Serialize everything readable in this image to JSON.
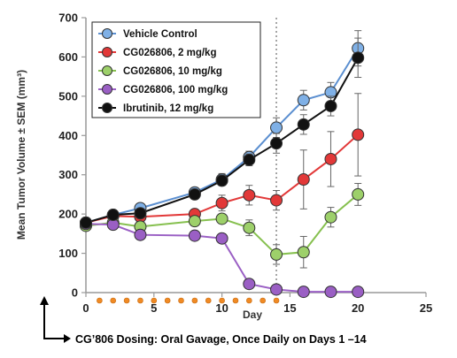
{
  "chart_data": {
    "type": "line",
    "title": "",
    "xlabel": "Day",
    "ylabel": "Mean Tumor Volume ± SEM (mm³)",
    "xlim": [
      0,
      25
    ],
    "ylim": [
      0,
      700
    ],
    "xticks": [
      0,
      5,
      10,
      15,
      20,
      25
    ],
    "yticks": [
      0,
      100,
      200,
      300,
      400,
      500,
      600,
      700
    ],
    "grid": false,
    "legend_position": "top-left",
    "reference_line": {
      "x": 14
    },
    "dosing_days": [
      1,
      2,
      3,
      4,
      5,
      6,
      7,
      8,
      9,
      10,
      11,
      12,
      13,
      14
    ],
    "dosing_note": "CG’806 Dosing: Oral Gavage, Once Daily on Days 1 –14",
    "series": [
      {
        "name": "Vehicle Control",
        "color": "#7fb0e6",
        "line_color": "#5b8fd0",
        "points": [
          [
            0,
            178
          ],
          [
            2,
            198
          ],
          [
            4,
            215
          ],
          [
            8,
            255
          ],
          [
            10,
            288
          ],
          [
            12,
            345
          ],
          [
            14,
            420
          ],
          [
            16,
            490
          ],
          [
            18,
            510
          ],
          [
            20,
            622
          ]
        ],
        "errors": [
          8,
          8,
          10,
          12,
          15,
          15,
          25,
          25,
          25,
          45
        ]
      },
      {
        "name": "CG026806, 2 mg/kg",
        "color": "#e23838",
        "line_color": "#e23838",
        "points": [
          [
            0,
            178
          ],
          [
            2,
            195
          ],
          [
            4,
            193
          ],
          [
            8,
            200
          ],
          [
            10,
            228
          ],
          [
            12,
            248
          ],
          [
            14,
            235
          ],
          [
            16,
            288
          ],
          [
            18,
            340
          ],
          [
            20,
            402
          ]
        ],
        "errors": [
          8,
          8,
          10,
          10,
          20,
          25,
          25,
          75,
          70,
          105
        ]
      },
      {
        "name": "CG026806, 10 mg/kg",
        "color": "#9dd06a",
        "line_color": "#86c04f",
        "points": [
          [
            0,
            170
          ],
          [
            2,
            178
          ],
          [
            4,
            168
          ],
          [
            8,
            182
          ],
          [
            10,
            188
          ],
          [
            12,
            165
          ],
          [
            14,
            97
          ],
          [
            16,
            103
          ],
          [
            18,
            192
          ],
          [
            20,
            250
          ]
        ],
        "errors": [
          8,
          8,
          8,
          10,
          12,
          20,
          25,
          40,
          25,
          28
        ]
      },
      {
        "name": "CG026806, 100 mg/kg",
        "color": "#9a5fc4",
        "line_color": "#9a5fc4",
        "points": [
          [
            0,
            175
          ],
          [
            2,
            173
          ],
          [
            4,
            147
          ],
          [
            8,
            145
          ],
          [
            10,
            138
          ],
          [
            12,
            22
          ],
          [
            14,
            8
          ],
          [
            16,
            2
          ],
          [
            18,
            2
          ],
          [
            20,
            2
          ]
        ],
        "errors": [
          6,
          6,
          8,
          8,
          8,
          6,
          4,
          2,
          2,
          2
        ]
      },
      {
        "name": "Ibrutinib, 12 mg/kg",
        "color": "#111111",
        "line_color": "#111111",
        "points": [
          [
            0,
            178
          ],
          [
            2,
            198
          ],
          [
            4,
            202
          ],
          [
            8,
            250
          ],
          [
            10,
            285
          ],
          [
            12,
            338
          ],
          [
            14,
            380
          ],
          [
            16,
            428
          ],
          [
            18,
            475
          ],
          [
            20,
            598
          ]
        ],
        "errors": [
          8,
          8,
          8,
          12,
          12,
          15,
          25,
          25,
          25,
          50
        ]
      }
    ]
  }
}
